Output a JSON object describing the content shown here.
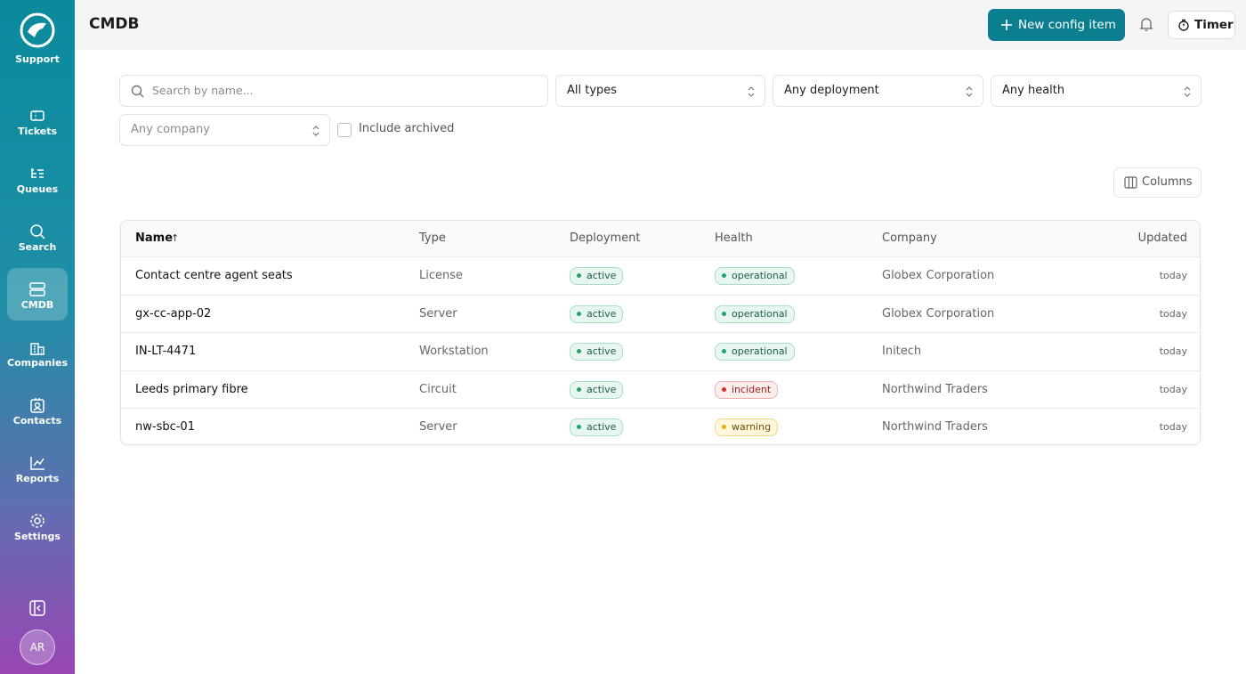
{
  "sidebar": {
    "brand": "Support",
    "nav": [
      "Tickets",
      "Queues",
      "Search",
      "CMDB",
      "Companies",
      "Contacts",
      "Reports",
      "Settings"
    ],
    "avatar": "AR"
  },
  "header": {
    "title": "CMDB",
    "new_button": "New config item",
    "timer_button": "Timer"
  },
  "filters": {
    "search_placeholder": "Search by name...",
    "type": "All types",
    "deployment": "Any deployment",
    "health": "Any health",
    "company": "Any company",
    "include_archived": "Include archived"
  },
  "columns_button": "Columns",
  "table": {
    "columns": [
      "Name",
      "Type",
      "Deployment",
      "Health",
      "Company",
      "Updated"
    ],
    "sort_indicator": "↑",
    "rows": [
      [
        "Contact centre agent seats",
        "License",
        "active",
        "operational",
        "Globex Corporation",
        "today"
      ],
      [
        "gx-cc-app-02",
        "Server",
        "active",
        "operational",
        "Globex Corporation",
        "today"
      ],
      [
        "IN-LT-4471",
        "Workstation",
        "active",
        "operational",
        "Initech",
        "today"
      ],
      [
        "Leeds primary fibre",
        "Circuit",
        "active",
        "incident",
        "Northwind Traders",
        "today"
      ],
      [
        "nw-sbc-01",
        "Server",
        "active",
        "warning",
        "Northwind Traders",
        "today"
      ]
    ]
  }
}
